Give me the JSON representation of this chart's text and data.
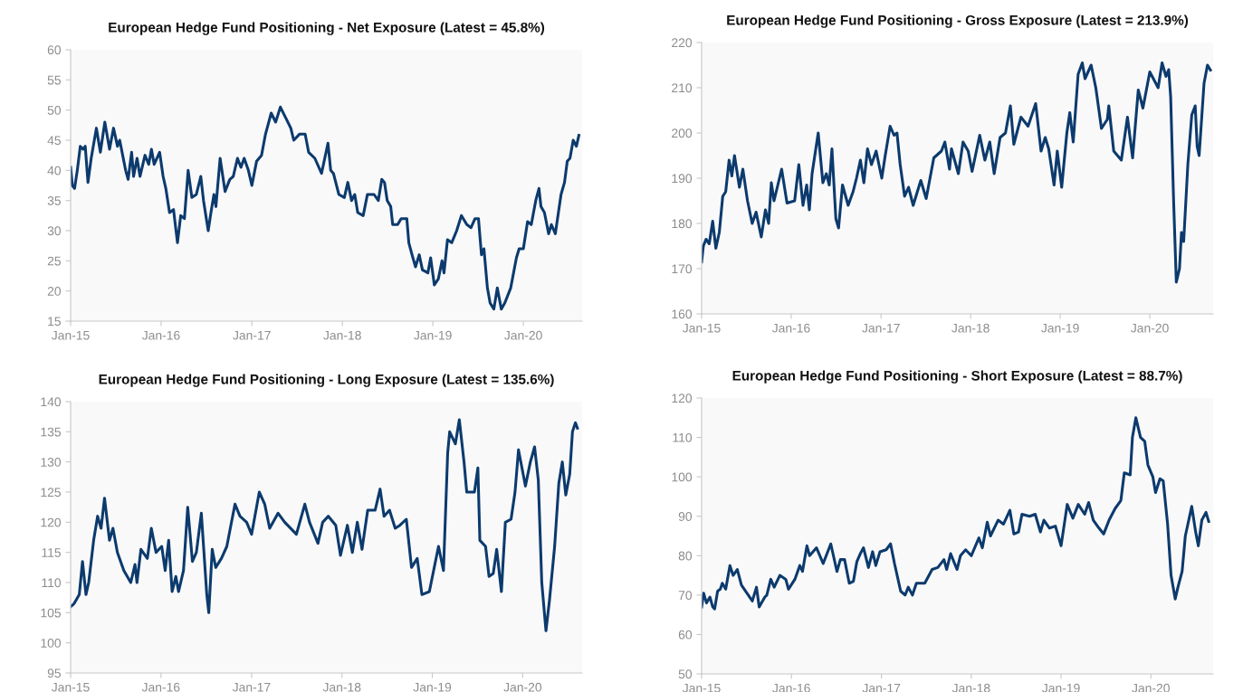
{
  "chart_data": [
    {
      "type": "line",
      "title": "European Hedge Fund Positioning - Net Exposure (Latest = 45.8%)",
      "color": "#0c3a6d",
      "x": [
        "2015-01-01",
        "2015-01-08",
        "2015-01-17",
        "2015-01-28",
        "2015-02-09",
        "2015-02-20",
        "2015-03-01",
        "2015-03-12",
        "2015-03-25",
        "2015-04-15",
        "2015-05-01",
        "2015-05-19",
        "2015-06-07",
        "2015-06-23",
        "2015-07-09",
        "2015-07-18",
        "2015-08-11",
        "2015-08-21",
        "2015-09-04",
        "2015-09-12",
        "2015-09-26",
        "2015-10-08",
        "2015-10-28",
        "2015-11-12",
        "2015-11-23",
        "2015-12-04",
        "2015-12-26",
        "2016-01-09",
        "2016-01-20",
        "2016-02-04",
        "2016-02-20",
        "2016-03-07",
        "2016-03-20",
        "2016-04-04",
        "2016-04-19",
        "2016-05-04",
        "2016-05-22",
        "2016-06-09",
        "2016-06-20",
        "2016-07-09",
        "2016-07-20",
        "2016-08-01",
        "2016-08-09",
        "2016-08-26",
        "2016-09-15",
        "2016-10-04",
        "2016-10-18",
        "2016-11-04",
        "2016-11-18",
        "2016-12-01",
        "2016-12-18",
        "2017-01-01",
        "2017-01-20",
        "2017-02-09",
        "2017-02-25",
        "2017-03-20",
        "2017-04-07",
        "2017-04-26",
        "2017-05-20",
        "2017-06-07",
        "2017-06-19",
        "2017-07-12",
        "2017-08-04",
        "2017-08-18",
        "2017-09-12",
        "2017-10-09",
        "2017-11-04",
        "2017-11-15",
        "2017-11-26",
        "2017-12-18",
        "2018-01-09",
        "2018-01-23",
        "2018-02-07",
        "2018-02-20",
        "2018-03-04",
        "2018-03-26",
        "2018-04-12",
        "2018-05-09",
        "2018-05-26",
        "2018-06-09",
        "2018-06-20",
        "2018-07-01",
        "2018-07-15",
        "2018-07-23",
        "2018-08-12",
        "2018-08-26",
        "2018-09-18",
        "2018-09-26",
        "2018-10-09",
        "2018-10-23",
        "2018-11-07",
        "2018-11-20",
        "2018-12-12",
        "2018-12-23",
        "2019-01-07",
        "2019-01-23",
        "2019-02-07",
        "2019-02-15",
        "2019-03-01",
        "2019-03-18",
        "2019-04-07",
        "2019-04-26",
        "2019-05-18",
        "2019-06-04",
        "2019-06-20",
        "2019-07-04",
        "2019-07-16",
        "2019-07-26",
        "2019-08-09",
        "2019-08-20",
        "2019-09-04",
        "2019-09-18",
        "2019-10-04",
        "2019-10-18",
        "2019-11-11",
        "2019-12-04",
        "2019-12-15",
        "2020-01-01",
        "2020-01-18",
        "2020-02-02",
        "2020-02-20",
        "2020-03-04",
        "2020-03-12",
        "2020-03-26",
        "2020-04-12",
        "2020-04-23",
        "2020-05-09",
        "2020-06-01",
        "2020-06-15",
        "2020-06-26",
        "2020-07-07",
        "2020-07-20",
        "2020-08-02",
        "2020-08-12"
      ],
      "values": [
        40.5,
        37.5,
        37,
        40,
        44,
        43.5,
        44,
        38,
        42,
        47,
        43,
        48,
        43.5,
        47,
        44,
        45,
        40,
        38.5,
        43,
        39,
        42,
        39,
        42.5,
        41,
        43.5,
        41,
        43,
        39,
        37,
        33,
        33.5,
        28,
        32.5,
        32,
        40,
        35.5,
        36,
        39,
        35,
        30,
        33,
        36,
        34,
        42,
        36.5,
        38.5,
        39,
        42,
        40.5,
        42,
        40,
        37.5,
        41.5,
        42.5,
        46,
        49.5,
        48,
        50.5,
        48.5,
        47,
        45,
        46,
        46,
        43,
        42,
        39.5,
        44.5,
        40,
        39.5,
        36,
        35.5,
        38,
        35,
        36,
        33,
        32.5,
        36,
        36,
        35,
        38.5,
        38,
        35,
        34,
        31,
        31,
        32,
        32,
        28,
        26,
        24,
        26,
        23.5,
        23,
        25.5,
        21,
        22,
        25,
        23,
        28.5,
        28,
        30,
        32.5,
        31,
        30.5,
        32,
        32,
        26,
        27,
        20.5,
        18,
        17,
        20.5,
        17,
        18,
        20.5,
        25.5,
        27,
        27,
        31.5,
        31,
        35,
        37,
        34,
        33,
        29.5,
        31,
        29.5,
        36,
        38,
        41.5,
        42,
        45,
        44,
        45.8
      ],
      "xlim": [
        "2015-01-01",
        "2020-08-25"
      ],
      "ylim": [
        15,
        60
      ],
      "yticks": [
        15,
        20,
        25,
        30,
        35,
        40,
        45,
        50,
        55,
        60
      ],
      "xticks": [
        {
          "value": "2015-01-01",
          "label": "Jan-15"
        },
        {
          "value": "2016-01-01",
          "label": "Jan-16"
        },
        {
          "value": "2017-01-01",
          "label": "Jan-17"
        },
        {
          "value": "2018-01-01",
          "label": "Jan-18"
        },
        {
          "value": "2019-01-01",
          "label": "Jan-19"
        },
        {
          "value": "2020-01-01",
          "label": "Jan-20"
        }
      ]
    },
    {
      "type": "line",
      "title": "European Hedge Fund Positioning - Gross Exposure (Latest = 213.9%)",
      "color": "#0c3a6d",
      "x": [
        "2015-01-01",
        "2015-01-08",
        "2015-01-19",
        "2015-02-01",
        "2015-02-15",
        "2015-02-28",
        "2015-03-14",
        "2015-03-28",
        "2015-04-09",
        "2015-04-23",
        "2015-05-04",
        "2015-05-15",
        "2015-06-04",
        "2015-06-18",
        "2015-07-07",
        "2015-07-26",
        "2015-08-11",
        "2015-09-01",
        "2015-09-18",
        "2015-10-01",
        "2015-10-12",
        "2015-10-23",
        "2015-11-23",
        "2015-12-15",
        "2016-01-15",
        "2016-02-01",
        "2016-02-18",
        "2016-03-04",
        "2016-03-15",
        "2016-03-26",
        "2016-04-20",
        "2016-05-09",
        "2016-05-23",
        "2016-06-04",
        "2016-06-15",
        "2016-07-01",
        "2016-07-12",
        "2016-07-28",
        "2016-08-20",
        "2016-09-09",
        "2016-09-23",
        "2016-10-09",
        "2016-10-23",
        "2016-11-07",
        "2016-11-23",
        "2016-12-12",
        "2017-01-04",
        "2017-01-18",
        "2017-02-07",
        "2017-02-23",
        "2017-03-07",
        "2017-03-20",
        "2017-04-07",
        "2017-04-23",
        "2017-05-12",
        "2017-06-12",
        "2017-07-04",
        "2017-08-04",
        "2017-09-04",
        "2017-09-18",
        "2017-10-07",
        "2017-10-15",
        "2017-11-12",
        "2017-12-01",
        "2017-12-22",
        "2018-01-07",
        "2018-02-07",
        "2018-02-28",
        "2018-03-20",
        "2018-04-07",
        "2018-05-01",
        "2018-05-23",
        "2018-06-12",
        "2018-06-26",
        "2018-07-25",
        "2018-08-23",
        "2018-09-23",
        "2018-10-15",
        "2018-11-01",
        "2018-11-15",
        "2018-12-07",
        "2018-12-20",
        "2019-01-07",
        "2019-01-28",
        "2019-02-09",
        "2019-02-23",
        "2019-03-15",
        "2019-04-01",
        "2019-04-12",
        "2019-05-07",
        "2019-05-26",
        "2019-06-18",
        "2019-07-12",
        "2019-07-18",
        "2019-08-07",
        "2019-09-07",
        "2019-10-02",
        "2019-10-23",
        "2019-11-15",
        "2019-12-04",
        "2020-01-01",
        "2020-02-04",
        "2020-02-20",
        "2020-03-07",
        "2020-03-18",
        "2020-03-26",
        "2020-04-07",
        "2020-04-18",
        "2020-05-01",
        "2020-05-09",
        "2020-05-18",
        "2020-06-04",
        "2020-06-20",
        "2020-07-04",
        "2020-07-12",
        "2020-07-20",
        "2020-08-09",
        "2020-08-23",
        "2020-09-04"
      ],
      "values": [
        171.5,
        175,
        176.5,
        175.5,
        180.5,
        174.5,
        178,
        186,
        187,
        194,
        190.5,
        195,
        188,
        192,
        185,
        180,
        182.5,
        177,
        183,
        180,
        189,
        185,
        192,
        184.5,
        185,
        193,
        184,
        188.5,
        183,
        191,
        200,
        189,
        191,
        188.5,
        196.5,
        181,
        179,
        188.5,
        184,
        187,
        190,
        194,
        189,
        196.5,
        193,
        196,
        190,
        195,
        201.5,
        199.5,
        200,
        193,
        186,
        188,
        184,
        189.5,
        185.5,
        194.5,
        196,
        198,
        192,
        196.5,
        191,
        198,
        196,
        191.5,
        199.5,
        194,
        198,
        191,
        199,
        200,
        206,
        197.5,
        203.5,
        201.5,
        206.5,
        196,
        199,
        196.5,
        188.5,
        196,
        188,
        200,
        204.5,
        198,
        213,
        215.5,
        212,
        215,
        210,
        201,
        203,
        206,
        196,
        194,
        203.5,
        194.5,
        209.5,
        205.5,
        213.5,
        210,
        215.5,
        212.5,
        214,
        208,
        185,
        167,
        170,
        178,
        176,
        193,
        204,
        206,
        197,
        195,
        211,
        215,
        213.9
      ],
      "xlim": [
        "2015-01-01",
        "2020-09-15"
      ],
      "ylim": [
        160,
        220
      ],
      "yticks": [
        160,
        170,
        180,
        190,
        200,
        210,
        220
      ],
      "xticks": [
        {
          "value": "2015-01-01",
          "label": "Jan-15"
        },
        {
          "value": "2016-01-01",
          "label": "Jan-16"
        },
        {
          "value": "2017-01-01",
          "label": "Jan-17"
        },
        {
          "value": "2018-01-01",
          "label": "Jan-18"
        },
        {
          "value": "2019-01-01",
          "label": "Jan-19"
        },
        {
          "value": "2020-01-01",
          "label": "Jan-20"
        }
      ]
    },
    {
      "type": "line",
      "title": "European Hedge Fund Positioning - Long Exposure (Latest = 135.6%)",
      "color": "#0c3a6d",
      "x": [
        "2015-01-01",
        "2015-01-15",
        "2015-02-05",
        "2015-02-18",
        "2015-03-04",
        "2015-03-15",
        "2015-04-04",
        "2015-04-20",
        "2015-05-04",
        "2015-05-18",
        "2015-06-07",
        "2015-06-21",
        "2015-07-09",
        "2015-08-04",
        "2015-09-01",
        "2015-09-18",
        "2015-09-26",
        "2015-10-12",
        "2015-11-07",
        "2015-11-23",
        "2015-12-12",
        "2016-01-04",
        "2016-01-18",
        "2016-02-01",
        "2016-02-15",
        "2016-03-01",
        "2016-03-12",
        "2016-04-01",
        "2016-04-18",
        "2016-05-07",
        "2016-05-23",
        "2016-06-12",
        "2016-07-04",
        "2016-07-12",
        "2016-07-26",
        "2016-08-09",
        "2016-09-01",
        "2016-09-23",
        "2016-10-07",
        "2016-10-26",
        "2016-11-15",
        "2016-12-12",
        "2017-01-01",
        "2017-02-01",
        "2017-02-23",
        "2017-03-15",
        "2017-04-18",
        "2017-05-15",
        "2017-07-01",
        "2017-08-04",
        "2017-08-23",
        "2017-09-26",
        "2017-10-15",
        "2017-11-07",
        "2017-12-07",
        "2017-12-26",
        "2018-01-23",
        "2018-02-12",
        "2018-03-04",
        "2018-03-23",
        "2018-04-15",
        "2018-05-15",
        "2018-06-04",
        "2018-06-20",
        "2018-07-12",
        "2018-08-04",
        "2018-08-23",
        "2018-09-18",
        "2018-10-09",
        "2018-11-01",
        "2018-11-20",
        "2018-12-20",
        "2019-01-26",
        "2019-02-15",
        "2019-03-04",
        "2019-03-12",
        "2019-04-04",
        "2019-04-20",
        "2019-05-09",
        "2019-05-20",
        "2019-06-20",
        "2019-07-04",
        "2019-07-12",
        "2019-08-04",
        "2019-08-18",
        "2019-09-04",
        "2019-09-18",
        "2019-10-07",
        "2019-10-23",
        "2019-11-15",
        "2019-12-01",
        "2019-12-15",
        "2020-01-12",
        "2020-02-01",
        "2020-02-18",
        "2020-03-04",
        "2020-03-18",
        "2020-04-04",
        "2020-04-18",
        "2020-05-09",
        "2020-05-26",
        "2020-06-09",
        "2020-06-23",
        "2020-07-09",
        "2020-07-20",
        "2020-08-01",
        "2020-08-09"
      ],
      "values": [
        106,
        106.5,
        108,
        113.5,
        108,
        110,
        117,
        121,
        119,
        124,
        117,
        119,
        115,
        112,
        110,
        113,
        110,
        115.5,
        114,
        119,
        115,
        116,
        112,
        117,
        108.5,
        111,
        108.5,
        112,
        122.5,
        113.5,
        115,
        121.5,
        108,
        105,
        115.5,
        112.5,
        114,
        116,
        119,
        123,
        121,
        120,
        118,
        125,
        123,
        119,
        121.5,
        120,
        118,
        123,
        120,
        116.5,
        120,
        121,
        119.5,
        114.5,
        119.5,
        115,
        120,
        115.5,
        122,
        122,
        125.5,
        121,
        122,
        119,
        119.5,
        120.5,
        112.5,
        114,
        108,
        108.5,
        116,
        112,
        131.5,
        135,
        133,
        137,
        130,
        125,
        125,
        129,
        117,
        116,
        111,
        111.5,
        115.5,
        108.5,
        120,
        120.5,
        125,
        132,
        126,
        130,
        132.5,
        127,
        110,
        102,
        107,
        116,
        126.5,
        130,
        124.5,
        128,
        135,
        136.5,
        135.6
      ],
      "xlim": [
        "2015-01-01",
        "2020-08-28"
      ],
      "ylim": [
        95,
        140
      ],
      "yticks": [
        95,
        100,
        105,
        110,
        115,
        120,
        125,
        130,
        135,
        140
      ],
      "xticks": [
        {
          "value": "2015-01-01",
          "label": "Jan-15"
        },
        {
          "value": "2016-01-01",
          "label": "Jan-16"
        },
        {
          "value": "2017-01-01",
          "label": "Jan-17"
        },
        {
          "value": "2018-01-01",
          "label": "Jan-18"
        },
        {
          "value": "2019-01-01",
          "label": "Jan-19"
        },
        {
          "value": "2020-01-01",
          "label": "Jan-20"
        }
      ]
    },
    {
      "type": "line",
      "title": "European Hedge Fund Positioning - Short Exposure (Latest = 88.7%)",
      "color": "#0c3a6d",
      "x": [
        "2015-01-01",
        "2015-01-09",
        "2015-01-21",
        "2015-02-04",
        "2015-02-15",
        "2015-02-23",
        "2015-03-07",
        "2015-03-18",
        "2015-03-26",
        "2015-04-09",
        "2015-04-26",
        "2015-05-09",
        "2015-05-26",
        "2015-06-12",
        "2015-07-04",
        "2015-07-26",
        "2015-08-12",
        "2015-08-23",
        "2015-09-15",
        "2015-09-23",
        "2015-10-09",
        "2015-10-23",
        "2015-11-15",
        "2015-12-09",
        "2015-12-20",
        "2016-01-15",
        "2016-02-04",
        "2016-02-15",
        "2016-03-04",
        "2016-03-15",
        "2016-04-12",
        "2016-05-09",
        "2016-06-09",
        "2016-07-04",
        "2016-07-18",
        "2016-08-04",
        "2016-08-23",
        "2016-09-09",
        "2016-09-23",
        "2016-10-07",
        "2016-10-20",
        "2016-11-09",
        "2016-11-26",
        "2016-12-09",
        "2016-12-26",
        "2017-01-20",
        "2017-02-07",
        "2017-02-23",
        "2017-03-20",
        "2017-04-07",
        "2017-04-20",
        "2017-05-07",
        "2017-05-23",
        "2017-06-26",
        "2017-07-26",
        "2017-08-18",
        "2017-09-12",
        "2017-09-23",
        "2017-10-09",
        "2017-11-04",
        "2017-11-18",
        "2017-12-09",
        "2018-01-01",
        "2018-02-01",
        "2018-02-15",
        "2018-03-07",
        "2018-03-20",
        "2018-04-20",
        "2018-05-12",
        "2018-06-07",
        "2018-06-23",
        "2018-07-12",
        "2018-07-26",
        "2018-08-26",
        "2018-09-18",
        "2018-10-09",
        "2018-10-23",
        "2018-11-15",
        "2018-12-09",
        "2019-01-01",
        "2019-01-26",
        "2019-02-18",
        "2019-03-12",
        "2019-04-07",
        "2019-04-23",
        "2019-05-12",
        "2019-06-04",
        "2019-06-23",
        "2019-07-15",
        "2019-08-09",
        "2019-09-01",
        "2019-09-15",
        "2019-10-09",
        "2019-10-18",
        "2019-11-01",
        "2019-11-20",
        "2019-12-07",
        "2019-12-20",
        "2020-01-09",
        "2020-01-20",
        "2020-02-07",
        "2020-02-20",
        "2020-03-09",
        "2020-03-23",
        "2020-04-09",
        "2020-04-20",
        "2020-05-07",
        "2020-05-20",
        "2020-06-15",
        "2020-07-01",
        "2020-07-12",
        "2020-07-26",
        "2020-08-12",
        "2020-08-23"
      ],
      "values": [
        67,
        70.5,
        68,
        69.5,
        67,
        66.5,
        71,
        71.5,
        73,
        71.5,
        77.5,
        75,
        76.5,
        72.5,
        70.5,
        68.5,
        72,
        67,
        69.5,
        70,
        74,
        72,
        75,
        74,
        71.5,
        74,
        77.5,
        76,
        82.5,
        80,
        82,
        78,
        83,
        76,
        79,
        79,
        73,
        73.5,
        78.5,
        80.5,
        82,
        77,
        81,
        77.5,
        81,
        81.5,
        83,
        78,
        71,
        70,
        72,
        70,
        73,
        73,
        76.5,
        77,
        79,
        76.5,
        80.5,
        76.5,
        80,
        81.5,
        80,
        84.5,
        82,
        88.5,
        85,
        89,
        88,
        91.5,
        85.5,
        86,
        90.5,
        90,
        90.5,
        86,
        89,
        87,
        87.5,
        82.5,
        93,
        89.5,
        93,
        90.5,
        93.5,
        89,
        87,
        85.5,
        89,
        92,
        94,
        101,
        100.5,
        110,
        115,
        110,
        109,
        103,
        100,
        96,
        99.5,
        99,
        88,
        75,
        69,
        72,
        76,
        85,
        92.5,
        86,
        82.5,
        89,
        91,
        88.7
      ],
      "xlim": [
        "2015-01-01",
        "2020-09-10"
      ],
      "ylim": [
        50,
        120
      ],
      "yticks": [
        50,
        60,
        70,
        80,
        90,
        100,
        110,
        120
      ],
      "xticks": [
        {
          "value": "2015-01-01",
          "label": "Jan-15"
        },
        {
          "value": "2016-01-01",
          "label": "Jan-16"
        },
        {
          "value": "2017-01-01",
          "label": "Jan-17"
        },
        {
          "value": "2018-01-01",
          "label": "Jan-18"
        },
        {
          "value": "2019-01-01",
          "label": "Jan-19"
        },
        {
          "value": "2020-01-01",
          "label": "Jan-20"
        }
      ]
    }
  ]
}
